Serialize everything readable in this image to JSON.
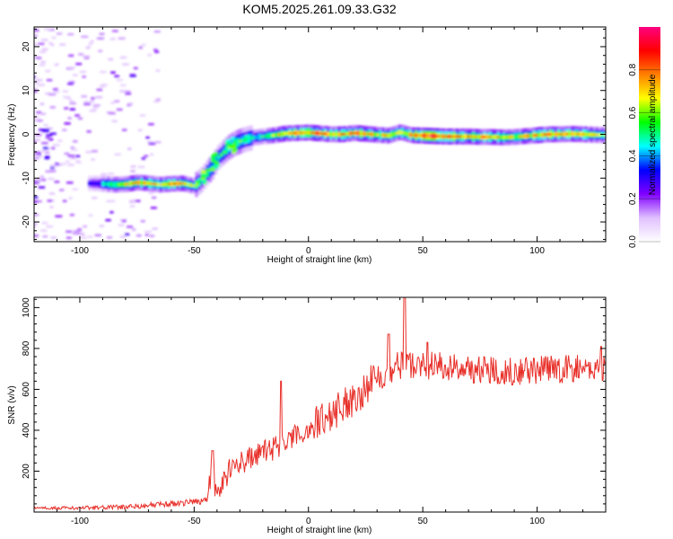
{
  "chart_data": [
    {
      "type": "heatmap",
      "title": "KOM5.2025.261.09.33.G32",
      "xlabel": "Height of straight line (km)",
      "ylabel": "Frequency (Hz)",
      "xlim": [
        -120,
        130
      ],
      "ylim": [
        -24.5,
        24.5
      ],
      "xticks": [
        -100,
        -50,
        0,
        50,
        100
      ],
      "yticks": [
        -20,
        -10,
        0,
        10,
        20
      ],
      "colorbar": {
        "label": "Normalized spectral amplitude",
        "range": [
          0,
          1
        ],
        "ticks": [
          "0.0",
          "0.2",
          "0.4",
          "0.6",
          "0.8"
        ],
        "colormap": [
          "#ffffff",
          "#e0c0ff",
          "#8000ff",
          "#0000ff",
          "#00ffff",
          "#00ff00",
          "#ffff00",
          "#ff8000",
          "#ff0000",
          "#ff0080"
        ]
      },
      "ridge": [
        {
          "x": -95,
          "y": -11.2,
          "v": 0.45
        },
        {
          "x": -90,
          "y": -11.3,
          "v": 0.55
        },
        {
          "x": -85,
          "y": -11.5,
          "v": 0.6
        },
        {
          "x": -80,
          "y": -11.4,
          "v": 0.7
        },
        {
          "x": -75,
          "y": -11.0,
          "v": 0.8
        },
        {
          "x": -70,
          "y": -11.2,
          "v": 0.75
        },
        {
          "x": -65,
          "y": -11.5,
          "v": 0.7
        },
        {
          "x": -60,
          "y": -11.3,
          "v": 0.78
        },
        {
          "x": -55,
          "y": -11.2,
          "v": 0.75
        },
        {
          "x": -50,
          "y": -11.8,
          "v": 0.6
        },
        {
          "x": -47,
          "y": -10.5,
          "v": 0.5
        },
        {
          "x": -44,
          "y": -8.5,
          "v": 0.6
        },
        {
          "x": -42,
          "y": -7.5,
          "v": 0.55
        },
        {
          "x": -40,
          "y": -5.5,
          "v": 0.5
        },
        {
          "x": -38,
          "y": -4.5,
          "v": 0.55
        },
        {
          "x": -35,
          "y": -3.0,
          "v": 0.6
        },
        {
          "x": -32,
          "y": -2.0,
          "v": 0.6
        },
        {
          "x": -28,
          "y": -1.2,
          "v": 0.55
        },
        {
          "x": -25,
          "y": -0.8,
          "v": 0.5
        },
        {
          "x": -20,
          "y": -0.5,
          "v": 0.55
        },
        {
          "x": -15,
          "y": -0.2,
          "v": 0.7
        },
        {
          "x": -10,
          "y": 0.2,
          "v": 0.8
        },
        {
          "x": -5,
          "y": 0.3,
          "v": 0.85
        },
        {
          "x": 0,
          "y": 0.4,
          "v": 0.9
        },
        {
          "x": 5,
          "y": 0.2,
          "v": 0.85
        },
        {
          "x": 10,
          "y": 0.0,
          "v": 0.8
        },
        {
          "x": 15,
          "y": 0.0,
          "v": 0.8
        },
        {
          "x": 20,
          "y": 0.3,
          "v": 0.85
        },
        {
          "x": 25,
          "y": 0.1,
          "v": 0.8
        },
        {
          "x": 30,
          "y": -0.1,
          "v": 0.75
        },
        {
          "x": 35,
          "y": -0.3,
          "v": 0.7
        },
        {
          "x": 40,
          "y": 0.5,
          "v": 0.7
        },
        {
          "x": 45,
          "y": -0.2,
          "v": 0.85
        },
        {
          "x": 50,
          "y": -0.3,
          "v": 0.95
        },
        {
          "x": 55,
          "y": -0.4,
          "v": 0.95
        },
        {
          "x": 60,
          "y": -0.5,
          "v": 0.9
        },
        {
          "x": 65,
          "y": -0.5,
          "v": 0.85
        },
        {
          "x": 70,
          "y": -0.5,
          "v": 0.8
        },
        {
          "x": 75,
          "y": -0.6,
          "v": 0.8
        },
        {
          "x": 80,
          "y": -0.6,
          "v": 0.75
        },
        {
          "x": 85,
          "y": -0.7,
          "v": 0.75
        },
        {
          "x": 90,
          "y": -0.6,
          "v": 0.7
        },
        {
          "x": 95,
          "y": -0.4,
          "v": 0.75
        },
        {
          "x": 100,
          "y": -0.2,
          "v": 0.8
        },
        {
          "x": 105,
          "y": 0.0,
          "v": 0.85
        },
        {
          "x": 110,
          "y": 0.0,
          "v": 0.8
        },
        {
          "x": 115,
          "y": 0.1,
          "v": 0.8
        },
        {
          "x": 120,
          "y": 0.0,
          "v": 0.75
        },
        {
          "x": 125,
          "y": -0.1,
          "v": 0.7
        },
        {
          "x": 130,
          "y": -0.2,
          "v": 0.65
        }
      ]
    },
    {
      "type": "line",
      "xlabel": "Height of straight line (km)",
      "ylabel": "SNR (v/v)",
      "xlim": [
        -120,
        130
      ],
      "ylim": [
        0,
        1050
      ],
      "xticks": [
        -100,
        -50,
        0,
        50,
        100
      ],
      "yticks": [
        200,
        400,
        600,
        800,
        1000
      ],
      "color": "#e8302a",
      "trend": [
        {
          "x": -120,
          "y": 20
        },
        {
          "x": -100,
          "y": 20
        },
        {
          "x": -80,
          "y": 25
        },
        {
          "x": -60,
          "y": 40
        },
        {
          "x": -50,
          "y": 50
        },
        {
          "x": -45,
          "y": 60
        },
        {
          "x": -42,
          "y": 200
        },
        {
          "x": -40,
          "y": 80
        },
        {
          "x": -35,
          "y": 200
        },
        {
          "x": -30,
          "y": 240
        },
        {
          "x": -20,
          "y": 290
        },
        {
          "x": -12,
          "y": 330
        },
        {
          "x": -5,
          "y": 370
        },
        {
          "x": 0,
          "y": 410
        },
        {
          "x": 10,
          "y": 480
        },
        {
          "x": 20,
          "y": 560
        },
        {
          "x": 30,
          "y": 660
        },
        {
          "x": 40,
          "y": 720
        },
        {
          "x": 50,
          "y": 720
        },
        {
          "x": 70,
          "y": 700
        },
        {
          "x": 90,
          "y": 690
        },
        {
          "x": 110,
          "y": 700
        },
        {
          "x": 130,
          "y": 700
        }
      ],
      "spikes": [
        {
          "x": -42,
          "y": 300
        },
        {
          "x": -12,
          "y": 640
        },
        {
          "x": 35,
          "y": 870
        },
        {
          "x": 42,
          "y": 1050
        },
        {
          "x": 52,
          "y": 830
        },
        {
          "x": 128,
          "y": 810
        }
      ]
    }
  ]
}
